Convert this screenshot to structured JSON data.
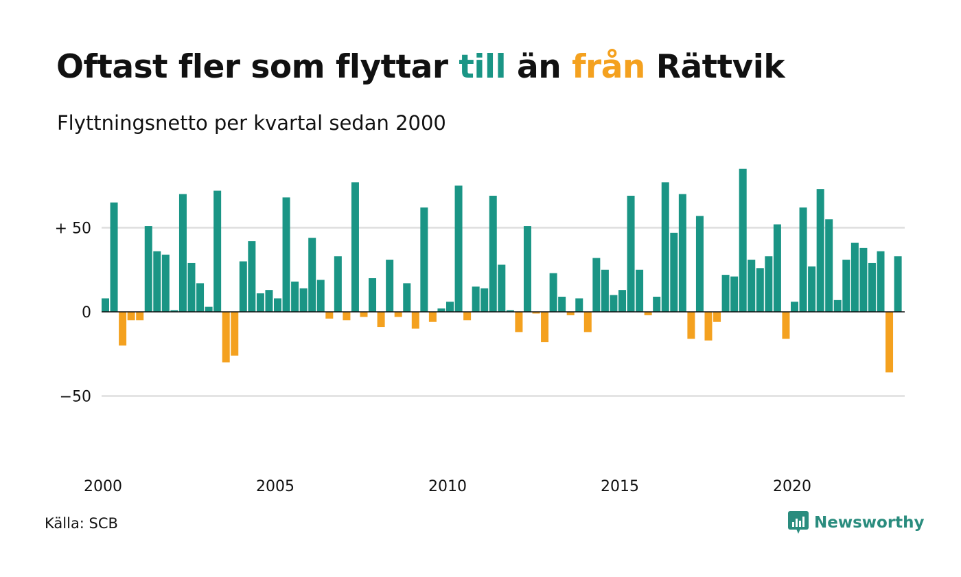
{
  "title": {
    "part1": "Oftast fler som flyttar ",
    "till": "till",
    "part2": " än ",
    "fran": "från",
    "part3": " Rättvik"
  },
  "subtitle": "Flyttningsnetto per kvartal sedan 2000",
  "source": "Källa: SCB",
  "brand": "Newsworthy",
  "colors": {
    "positive": "#1a9585",
    "negative": "#f4a11f",
    "grid": "#dddddd",
    "zero": "#111111"
  },
  "chart_data": {
    "type": "bar",
    "title": "Oftast fler som flyttar till än från Rättvik",
    "subtitle": "Flyttningsnetto per kvartal sedan 2000",
    "x_start": "2000-Q1",
    "x_ticks": [
      "2000",
      "2005",
      "2010",
      "2015",
      "2020"
    ],
    "y_ticks": [
      {
        "value": 50,
        "label": "+ 50"
      },
      {
        "value": 0,
        "label": "0"
      },
      {
        "value": -50,
        "label": "−50"
      }
    ],
    "ylim": [
      -85,
      90
    ],
    "grid": true,
    "values": [
      8,
      65,
      -20,
      -5,
      -5,
      51,
      36,
      34,
      1,
      70,
      29,
      17,
      3,
      72,
      -30,
      -26,
      30,
      42,
      11,
      13,
      8,
      68,
      18,
      14,
      44,
      19,
      -4,
      33,
      -5,
      77,
      -3,
      20,
      -9,
      31,
      -3,
      17,
      -10,
      62,
      -6,
      2,
      6,
      75,
      -5,
      15,
      14,
      69,
      28,
      1,
      -12,
      51,
      -1,
      -18,
      23,
      9,
      -2,
      8,
      -12,
      32,
      25,
      10,
      13,
      69,
      25,
      -2,
      9,
      77,
      47,
      70,
      -16,
      57,
      -17,
      -6,
      22,
      21,
      85,
      31,
      26,
      33,
      52,
      -16,
      6,
      62,
      27,
      73,
      55,
      7,
      31,
      41,
      38,
      29,
      36,
      -36,
      33
    ]
  }
}
